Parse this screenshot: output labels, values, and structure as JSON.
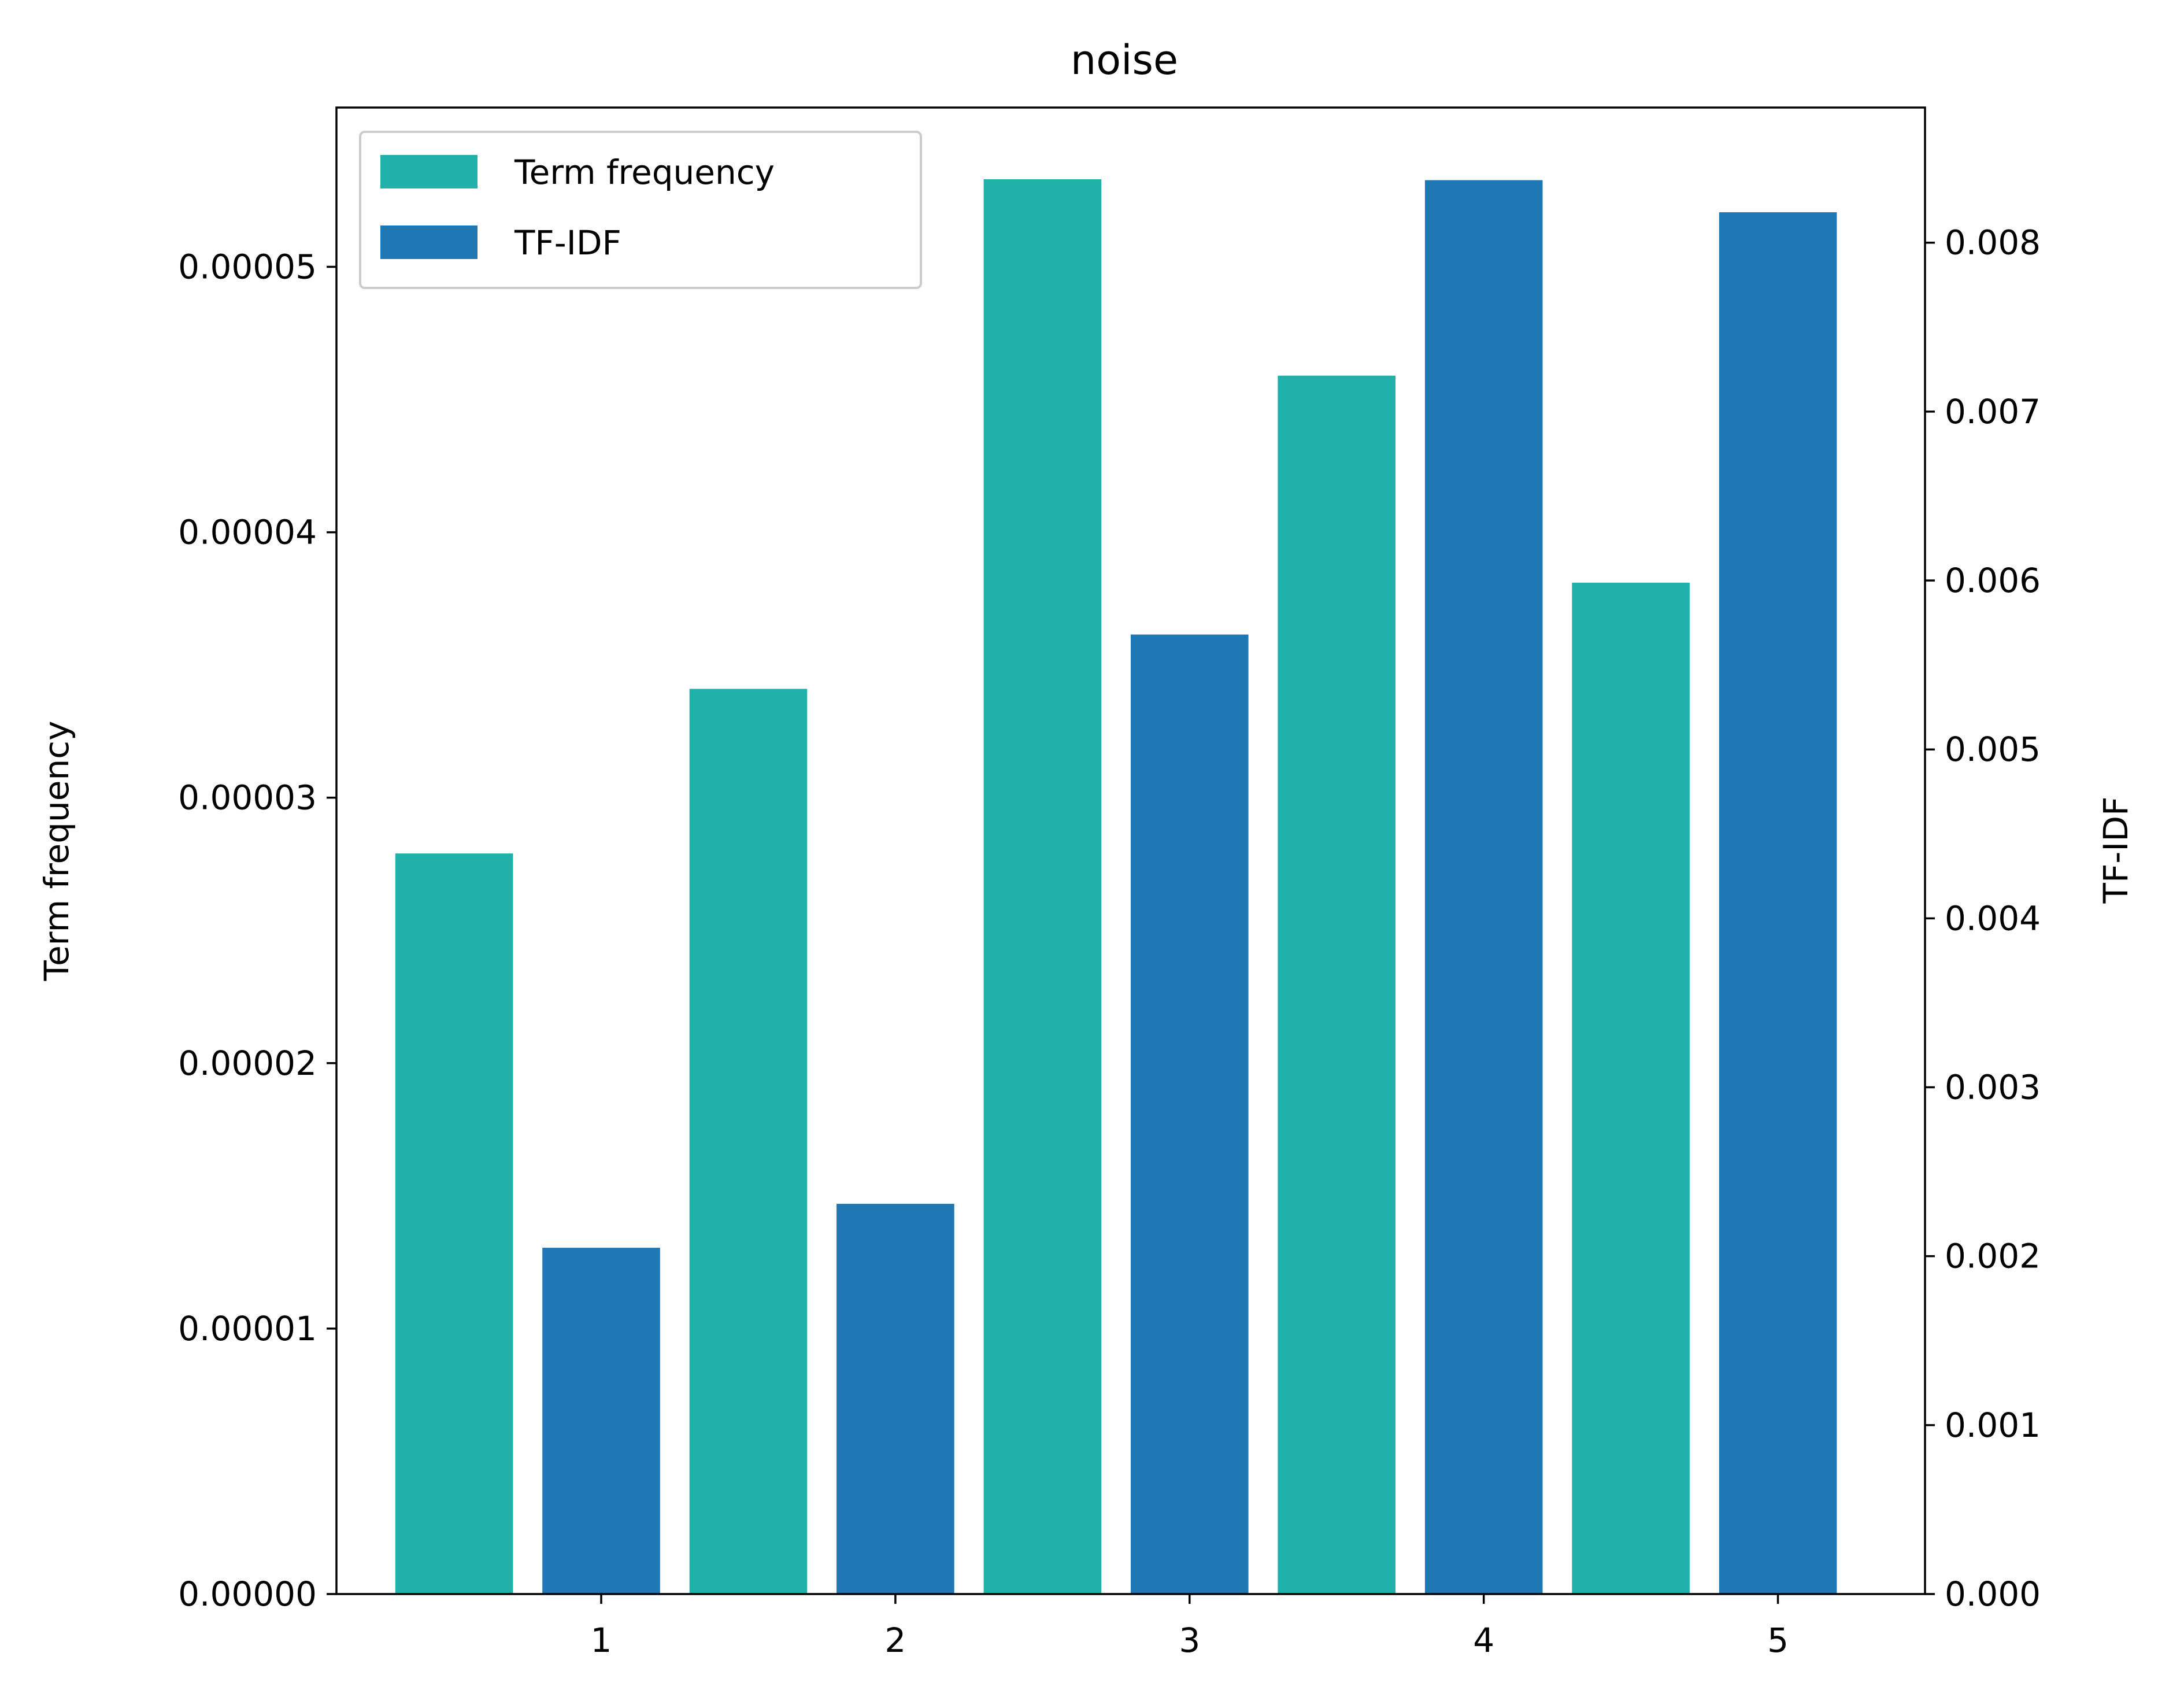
{
  "chart_data": {
    "type": "bar",
    "title": "noise",
    "categories": [
      "1",
      "2",
      "3",
      "4",
      "5"
    ],
    "series": [
      {
        "name": "Term frequency",
        "axis": "left",
        "color": "#20b2aa",
        "values": [
          2.79e-05,
          3.41e-05,
          5.33e-05,
          4.59e-05,
          3.81e-05
        ]
      },
      {
        "name": "TF-IDF",
        "axis": "right",
        "color": "#1f77b4",
        "values": [
          0.00205,
          0.00231,
          0.00568,
          0.00837,
          0.00818
        ]
      }
    ],
    "y_left": {
      "label": "Term frequency",
      "ylim": [
        0,
        5.6e-05
      ],
      "ticks": [
        0,
        1e-05,
        2e-05,
        3e-05,
        4e-05,
        5e-05
      ],
      "tick_labels": [
        "0.00000",
        "0.00001",
        "0.00002",
        "0.00003",
        "0.00004",
        "0.00005"
      ]
    },
    "y_right": {
      "label": "TF-IDF",
      "ylim": [
        0,
        0.0088
      ],
      "ticks": [
        0,
        0.001,
        0.002,
        0.003,
        0.004,
        0.005,
        0.006,
        0.007,
        0.008
      ],
      "tick_labels": [
        "0.000",
        "0.001",
        "0.002",
        "0.003",
        "0.004",
        "0.005",
        "0.006",
        "0.007",
        "0.008"
      ]
    },
    "x_ticks": [
      1,
      2,
      3,
      4,
      5
    ],
    "x_tick_labels": [
      "1",
      "2",
      "3",
      "4",
      "5"
    ],
    "grid": false,
    "legend": {
      "position": "top-left",
      "entries": [
        "Term frequency",
        "TF-IDF"
      ]
    }
  }
}
